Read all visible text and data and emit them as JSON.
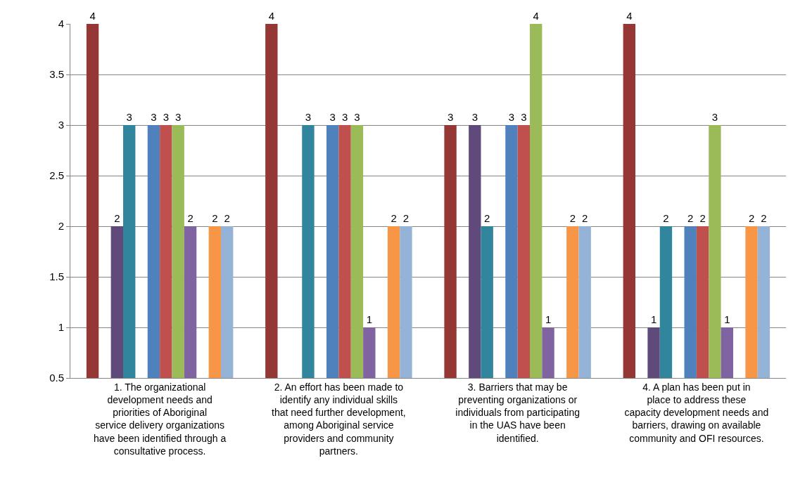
{
  "chart_data": {
    "type": "bar",
    "categories": [
      "1. The organizational development needs and priorities of Aboriginal service delivery organizations have been identified through a consultative process.",
      "2. An effort has been made to identify any individual skills that need further development, among Aboriginal service providers and community partners.",
      "3. Barriers that may be preventing organizations or individuals from participating in the UAS have been identified.",
      "4. A plan has been put in place to address these capacity development needs and barriers, drawing on available community and OFI resources."
    ],
    "series": [
      {
        "color": "#953735",
        "values": [
          4,
          4,
          3,
          4
        ]
      },
      {
        "color": "#9bbb59",
        "values": [
          null,
          null,
          null,
          null
        ]
      },
      {
        "color": "#604a7b",
        "values": [
          2,
          null,
          3,
          1
        ]
      },
      {
        "color": "#31859c",
        "values": [
          3,
          3,
          2,
          2
        ]
      },
      {
        "color": "#ffffff",
        "values": [
          null,
          null,
          null,
          null
        ]
      },
      {
        "color": "#4f81bd",
        "values": [
          3,
          3,
          3,
          2
        ]
      },
      {
        "color": "#c0504d",
        "values": [
          3,
          3,
          3,
          2
        ]
      },
      {
        "color": "#9bbb59",
        "values": [
          3,
          3,
          4,
          3
        ]
      },
      {
        "color": "#8064a2",
        "values": [
          2,
          1,
          1,
          1
        ]
      },
      {
        "color": "#4bacc6",
        "values": [
          null,
          null,
          null,
          null
        ]
      },
      {
        "color": "#f79646",
        "values": [
          2,
          2,
          2,
          2
        ]
      },
      {
        "color": "#95b3d7",
        "values": [
          2,
          2,
          2,
          2
        ]
      }
    ],
    "ylim": [
      0.5,
      4
    ],
    "yticks": [
      0.5,
      1,
      1.5,
      2,
      2.5,
      3,
      3.5,
      4
    ],
    "grid": "y",
    "data_labels": true
  }
}
